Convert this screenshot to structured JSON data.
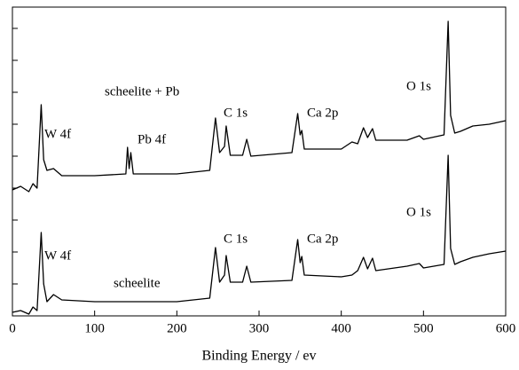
{
  "chart_data": {
    "type": "line",
    "xlabel": "Binding Energy / ev",
    "x": [
      0,
      10,
      20,
      25,
      30,
      35,
      38,
      42,
      50,
      60,
      100,
      138,
      140,
      142,
      144,
      147,
      200,
      240,
      247,
      252,
      258,
      260,
      265,
      280,
      285,
      290,
      340,
      347,
      350,
      352,
      355,
      400,
      413,
      420,
      427,
      432,
      438,
      442,
      480,
      495,
      500,
      525,
      530,
      533,
      538,
      545,
      560,
      580,
      600
    ],
    "series": [
      {
        "name": "scheelite + Pb",
        "color": "#000000",
        "values": [
          142,
          146,
          140,
          149,
          144,
          238,
          176,
          164,
          166,
          158,
          158,
          160,
          190,
          166,
          184,
          160,
          160,
          164,
          223,
          184,
          191,
          214,
          181,
          181,
          199,
          180,
          184,
          228,
          204,
          209,
          188,
          188,
          196,
          194,
          212,
          201,
          211,
          198,
          198,
          203,
          199,
          204,
          332,
          226,
          206,
          208,
          214,
          216,
          220
        ]
      },
      {
        "name": "scheelite",
        "color": "#000000",
        "values": [
          4,
          6,
          2,
          10,
          6,
          94,
          36,
          16,
          24,
          18,
          16,
          16,
          16,
          16,
          16,
          16,
          16,
          20,
          77,
          38,
          46,
          68,
          38,
          38,
          56,
          38,
          40,
          86,
          60,
          67,
          46,
          44,
          46,
          51,
          66,
          53,
          65,
          51,
          56,
          59,
          54,
          58,
          181,
          76,
          58,
          61,
          66,
          70,
          73
        ]
      }
    ],
    "annotations": [
      "W 4f",
      "Pb 4f",
      "C 1s",
      "Ca 2p",
      "O 1s",
      "O 1s",
      "W 4f",
      "C 1s",
      "Ca 2p"
    ],
    "xlim": [
      0,
      600
    ],
    "xticks": [
      0,
      100,
      200,
      300,
      400,
      500,
      600
    ],
    "ylim": [
      0,
      348
    ],
    "yticks": [
      0,
      36,
      72,
      108,
      144,
      180,
      216,
      252,
      288,
      324
    ]
  }
}
